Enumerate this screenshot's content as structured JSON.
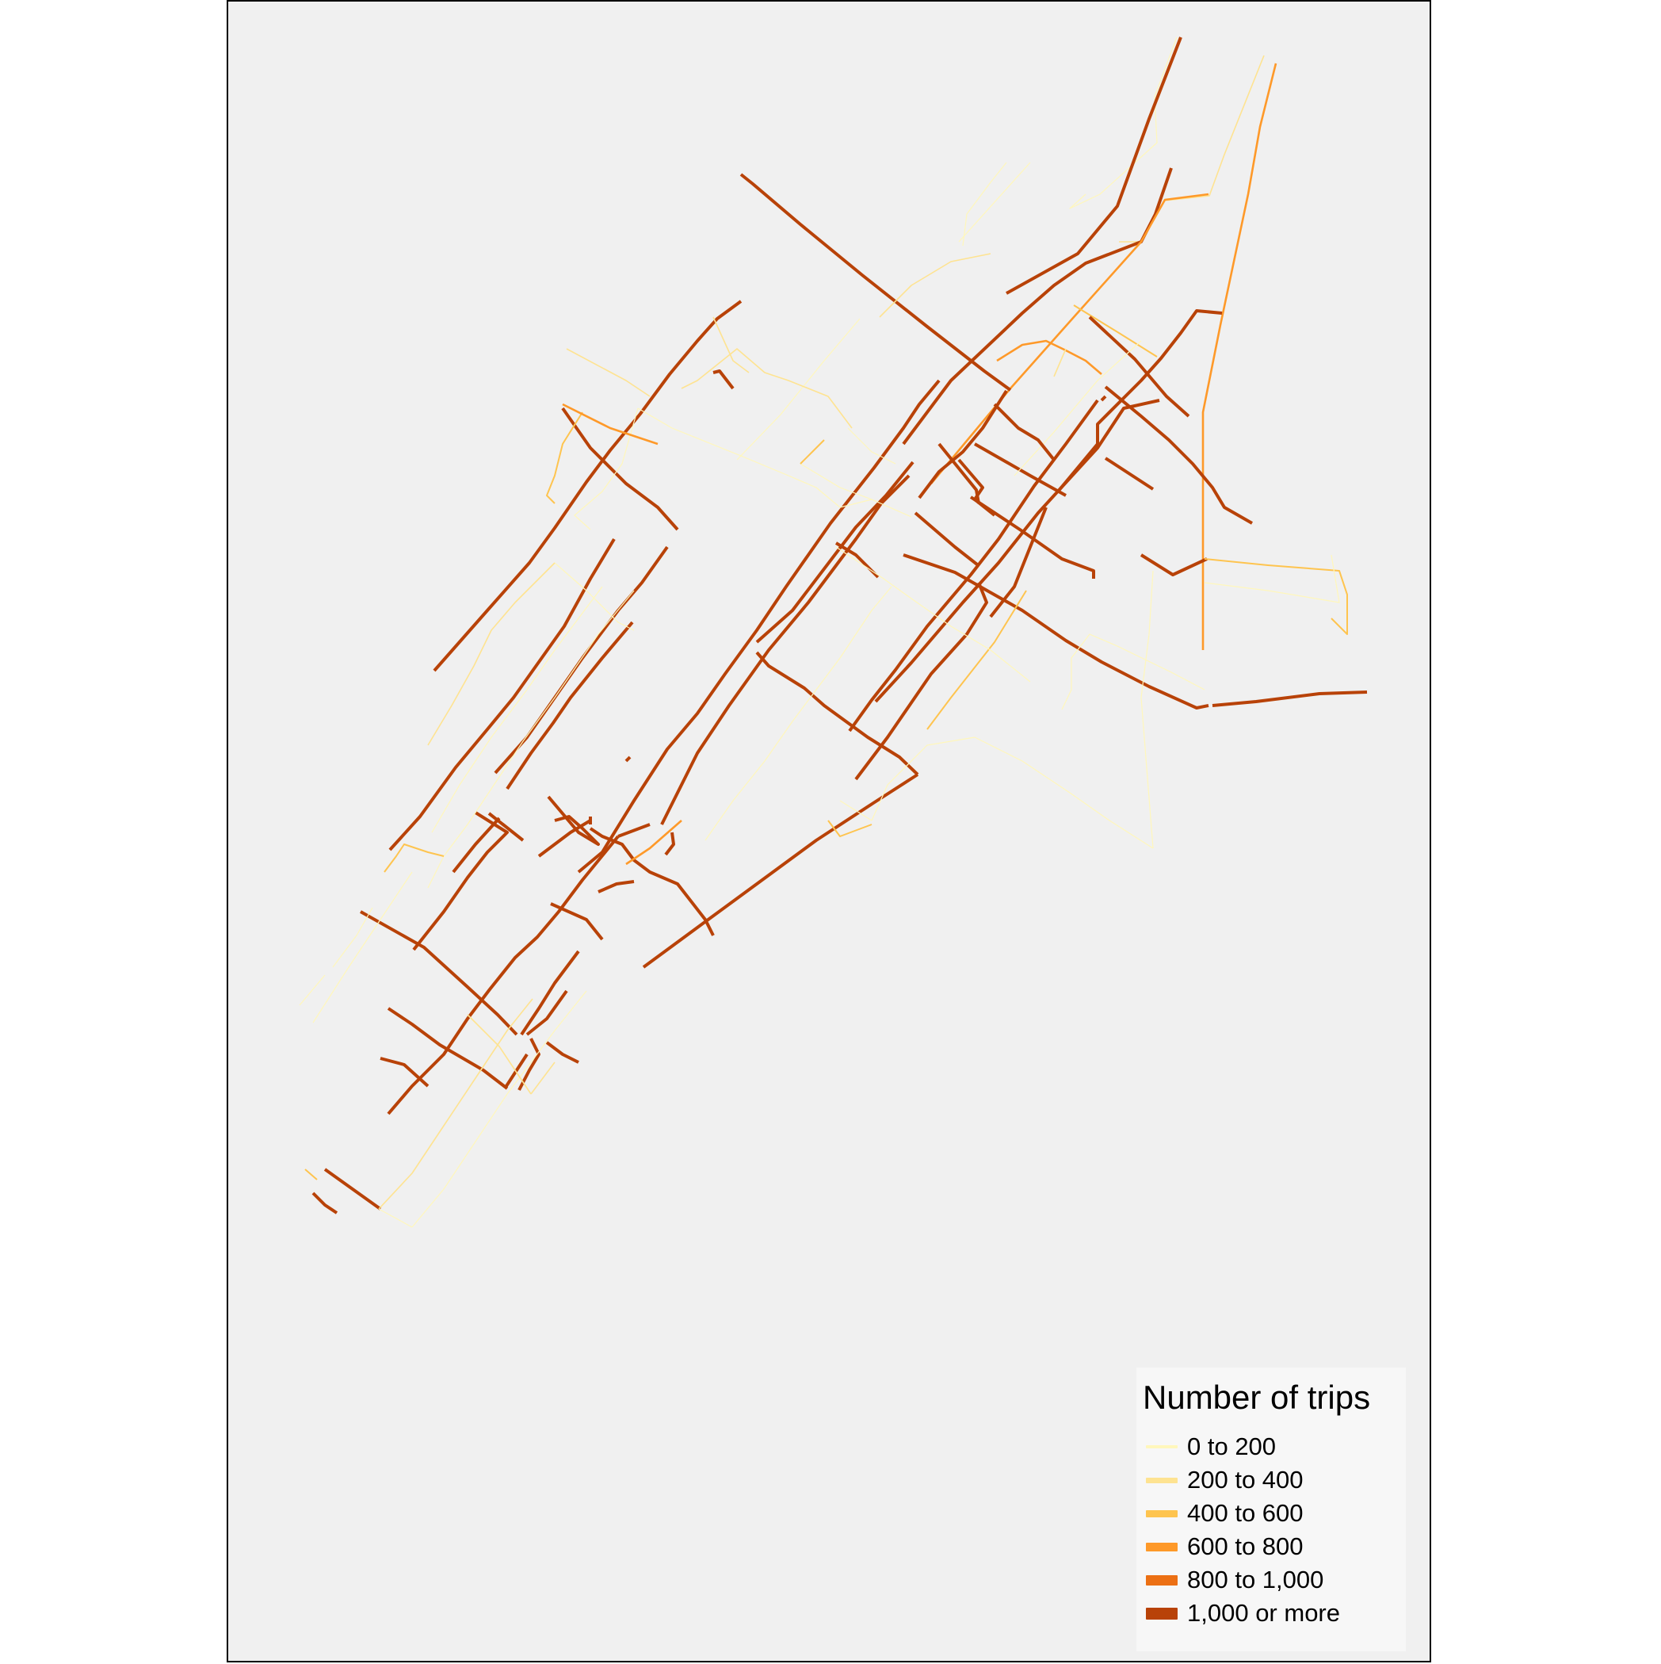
{
  "map": {
    "background": "#f0f0f0",
    "frame_color": "#000000"
  },
  "legend": {
    "title": "Number of trips",
    "classes": [
      {
        "label": "0 to 200",
        "color": "#fff7bc",
        "level": 1
      },
      {
        "label": "200 to 400",
        "color": "#fee391",
        "level": 2
      },
      {
        "label": "400 to 600",
        "color": "#fec44f",
        "level": 3
      },
      {
        "label": "600 to 800",
        "color": "#fe9929",
        "level": 4
      },
      {
        "label": "800 to 1,000",
        "color": "#ec7014",
        "level": 5
      },
      {
        "label": "1,000 or more",
        "color": "#b84208",
        "level": 6
      }
    ]
  }
}
